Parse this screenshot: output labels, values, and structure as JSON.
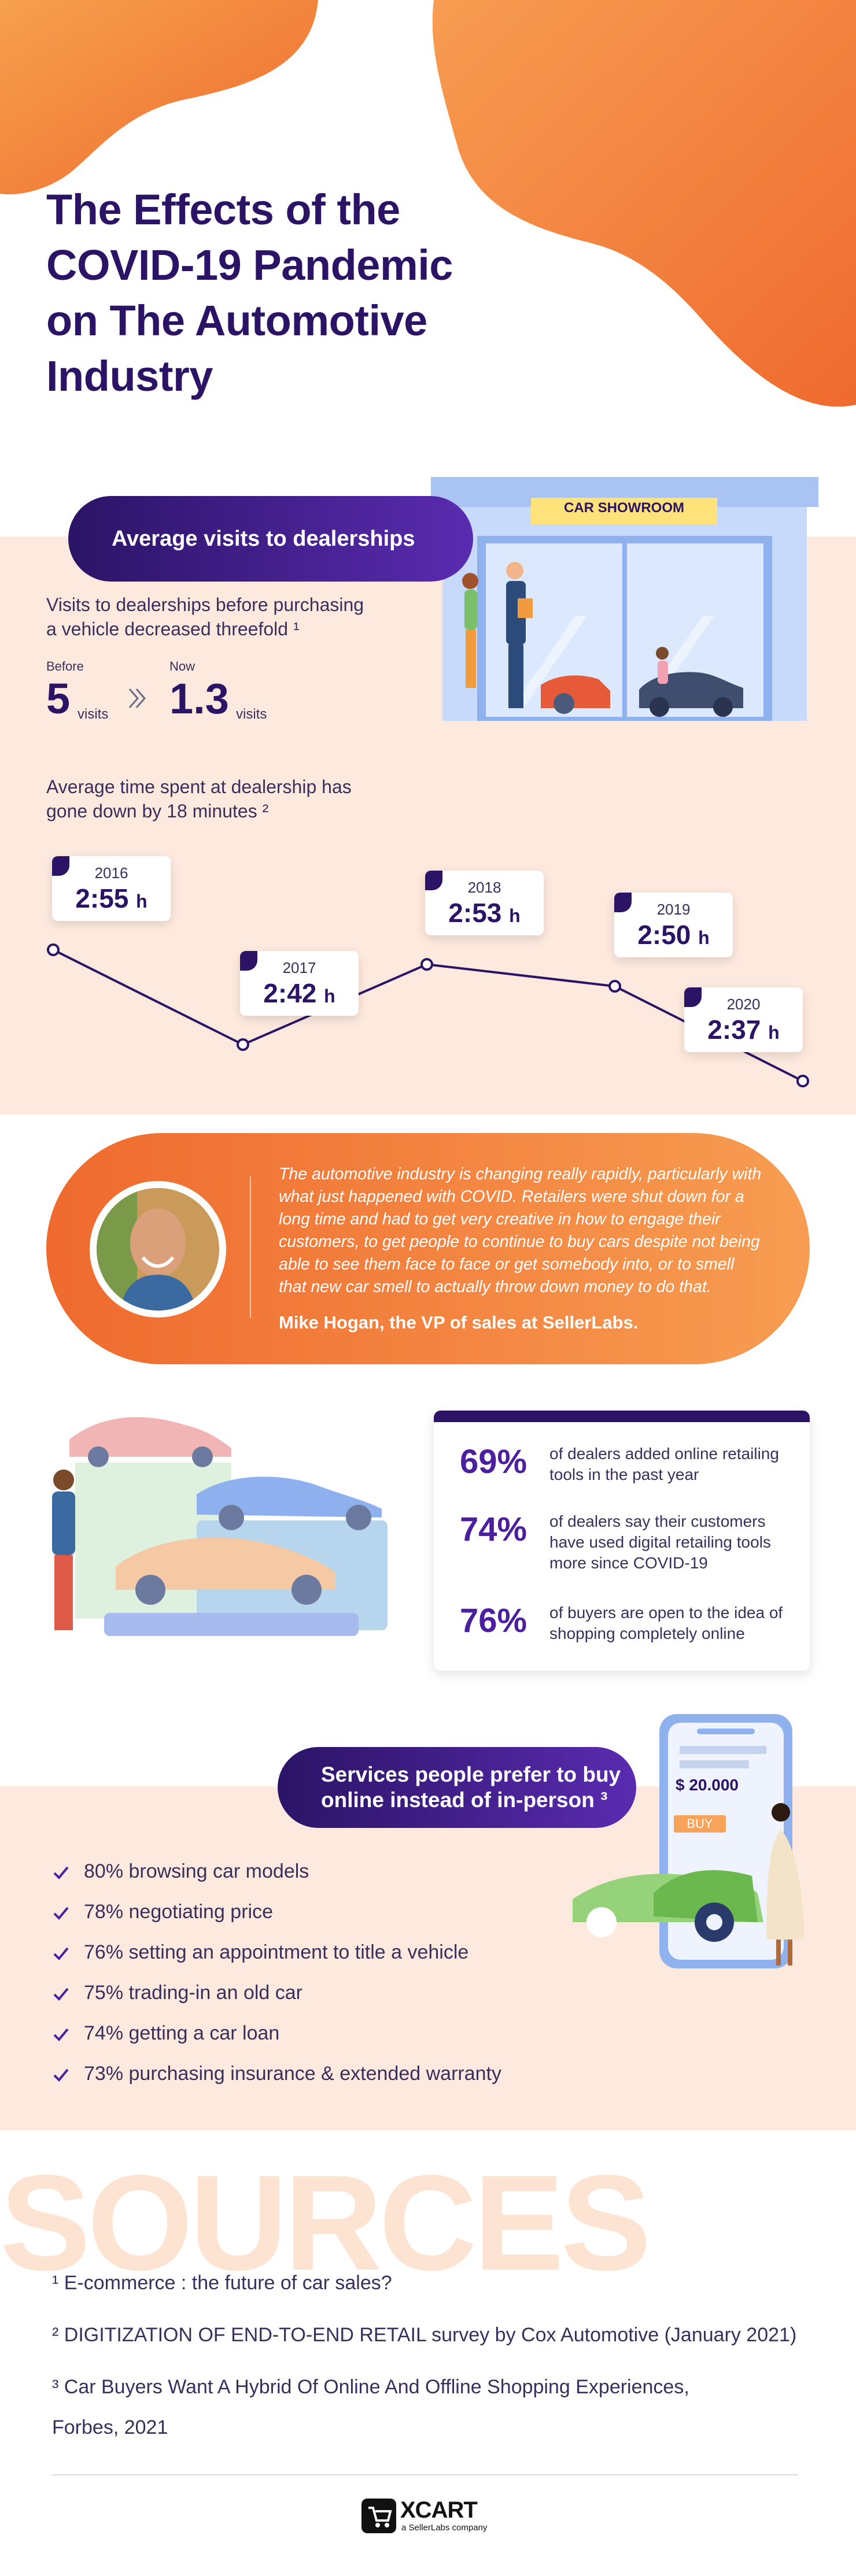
{
  "title": [
    "The Effects of the",
    "COVID-19 Pandemic",
    "on The Automotive",
    "Industry"
  ],
  "visits": {
    "pill_label": "Average visits to dealerships",
    "showroom_sign": "CAR SHOWROOM",
    "desc_lines": [
      "Visits to dealerships before purchasing",
      "a vehicle decreased threefold ¹"
    ],
    "before_label": "Before",
    "before_value": "5",
    "now_label": "Now",
    "now_value": "1.3",
    "unit": "visits"
  },
  "time": {
    "desc_lines": [
      "Average time spent at dealership has",
      "gone down by 18 minutes ²"
    ],
    "unit": "h",
    "points": [
      {
        "year": "2016",
        "time": "2:55",
        "minutes": 175
      },
      {
        "year": "2017",
        "time": "2:42",
        "minutes": 162
      },
      {
        "year": "2018",
        "time": "2:53",
        "minutes": 173
      },
      {
        "year": "2019",
        "time": "2:50",
        "minutes": 170
      },
      {
        "year": "2020",
        "time": "2:37",
        "minutes": 157
      }
    ]
  },
  "quote": {
    "text": "The automotive industry is changing really rapidly, particularly with what just happened with COVID. Retailers were shut down for a long time and had to get very creative in how to engage their customers, to get people to continue to buy cars despite not being able to see them face to face or get somebody into, or to smell that new car smell to actually throw down money to do that.",
    "author": "Mike Hogan, the VP of sales at SellerLabs."
  },
  "stats": [
    {
      "value": "69%",
      "text": "of dealers added online retailing tools in the past year"
    },
    {
      "value": "74%",
      "text": "of dealers say their customers have used digital retailing tools more since COVID-19"
    },
    {
      "value": "76%",
      "text": "of buyers are open to the idea of shopping completely online"
    }
  ],
  "services": {
    "pill_lines": [
      "Services people prefer to buy",
      "online instead of in-person ³"
    ],
    "price": "$ 20.000",
    "buy": "BUY",
    "items": [
      "80% browsing car models",
      "78% negotiating price",
      "76% setting an appointment to title a vehicle",
      "75% trading-in an old car",
      "74% getting a car loan",
      "73% purchasing insurance & extended warranty"
    ]
  },
  "sources": {
    "heading": "SOURCES",
    "items": [
      "¹ E-commerce : the future of car sales?",
      "² DIGITIZATION OF END-TO-END RETAIL survey by Cox Automotive (January 2021)",
      "³ Car Buyers Want A Hybrid Of Online And Offline Shopping Experiences,",
      "Forbes, 2021"
    ]
  },
  "footer": {
    "brand": "XCART",
    "tagline": "a SellerLabs company"
  },
  "colors": {
    "navy": "#2b1466",
    "orange": "#ef6a2e",
    "peach": "#fde9dd",
    "purple": "#4b1f9e"
  }
}
